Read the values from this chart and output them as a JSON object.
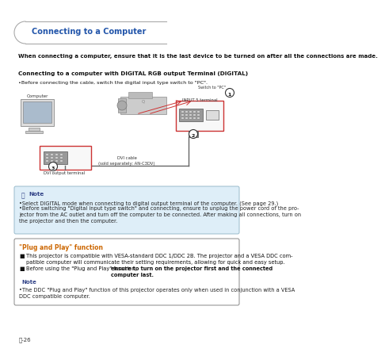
{
  "bg_color": "#ffffff",
  "header_text": "Connecting to a Computer",
  "header_text_color": "#2255aa",
  "header_arc_color": "#aaaaaa",
  "intro_text": "When connecting a computer, ensure that it is the last device to be turned on after all the connections are made.",
  "intro_fontsize": 5.5,
  "section_title": "Connecting to a computer with DIGITAL RGB output Terminal (DIGITAL)",
  "section_title_fontsize": 5.5,
  "section_bullet": "•Before connecting the cable, switch the digital input type switch to \"PC\".",
  "section_bullet_fontsize": 5.0,
  "note_box_bg": "#deeef8",
  "note_box_border": "#99bbcc",
  "note_title": "Note",
  "note_title_color": "#334488",
  "note_lines": [
    "•Select DIGITAL mode when connecting to digital output terminal of the computer. (See page 29.)",
    "•Before switching \"Digital input type switch\" and connecting, ensure to unplug the power cord of the pro-\njector from the AC outlet and turn off the computer to be connected. After making all connections, turn on\nthe projector and then the computer."
  ],
  "note_fontsize": 4.8,
  "plug_box_border": "#888888",
  "plug_box_bg": "#ffffff",
  "plug_title": "\"Plug and Play\" function",
  "plug_title_color": "#cc6600",
  "plug_title_fontsize": 5.5,
  "plug_lines": [
    "This projector is compatible with VESA-standard DDC 1/DDC 2B. The projector and a VESA DDC com-\npatible computer will communicate their setting requirements, allowing for quick and easy setup.",
    "Before using the \"Plug and Play\" function, "
  ],
  "plug_line2_bold": "ensure to turn on the projector first and the connected\ncomputer last.",
  "plug_fontsize": 4.8,
  "plug_note_text": "•The DDC \"Plug and Play\" function of this projector operates only when used in conjunction with a VESA\nDDC compatible computer.",
  "plug_note_fontsize": 4.8,
  "page_num": "ⓘ-26",
  "page_num_fontsize": 5.0,
  "diag": {
    "comp_label": "Computer",
    "dvi_out_label": "DVI output terminal",
    "dvi_cable_label": "DVI cable\n(sold separately: AN-C3DV)",
    "input5_label": "INPUT 5 terminal",
    "switch_label": "Switch to \"PC\"",
    "c1": "1",
    "c2": "2",
    "c3": "3"
  }
}
